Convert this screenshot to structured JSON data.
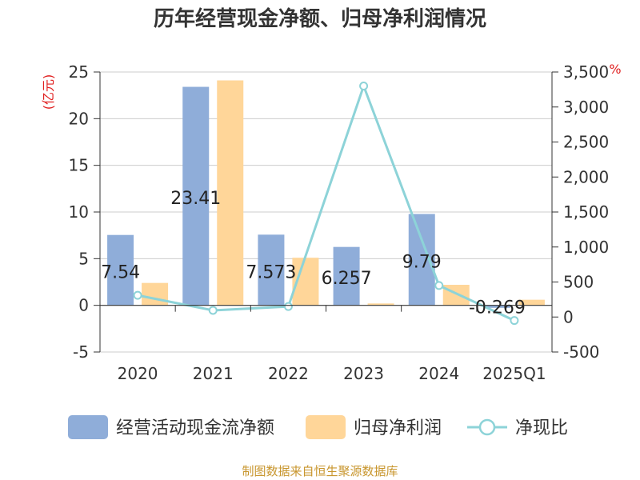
{
  "chart_data": {
    "type": "bar",
    "title": "历年经营现金净额、归母净利润情况",
    "categories": [
      "2020",
      "2021",
      "2022",
      "2023",
      "2024",
      "2025Q1"
    ],
    "y_left": {
      "unit": "(亿元)",
      "min": -5,
      "max": 25,
      "step": 5,
      "ticks": [
        "-5",
        "0",
        "5",
        "10",
        "15",
        "20",
        "25"
      ]
    },
    "y_right": {
      "unit": "%",
      "min": -500,
      "max": 3500,
      "step": 500,
      "ticks": [
        "-500",
        "0",
        "500",
        "1,000",
        "1,500",
        "2,000",
        "2,500",
        "3,000",
        "3,500"
      ]
    },
    "series": [
      {
        "name": "经营活动现金流净额",
        "type": "bar",
        "axis": "left",
        "color": "#8fadd9",
        "values": [
          7.54,
          23.41,
          7.573,
          6.257,
          9.79,
          -0.269
        ],
        "labels": [
          "7.54",
          "23.41",
          "7.573",
          "6.257",
          "9.79",
          "-0.269"
        ]
      },
      {
        "name": "归母净利润",
        "type": "bar",
        "axis": "left",
        "color": "#ffd699",
        "values": [
          2.4,
          24.1,
          5.1,
          0.2,
          2.2,
          0.6
        ]
      },
      {
        "name": "净现比",
        "type": "line",
        "axis": "right",
        "color": "#8dd3d8",
        "values": [
          310,
          95,
          150,
          3300,
          450,
          -50
        ]
      }
    ],
    "legend_position": "bottom",
    "grid": true
  },
  "source_text": "制图数据来自恒生聚源数据库"
}
